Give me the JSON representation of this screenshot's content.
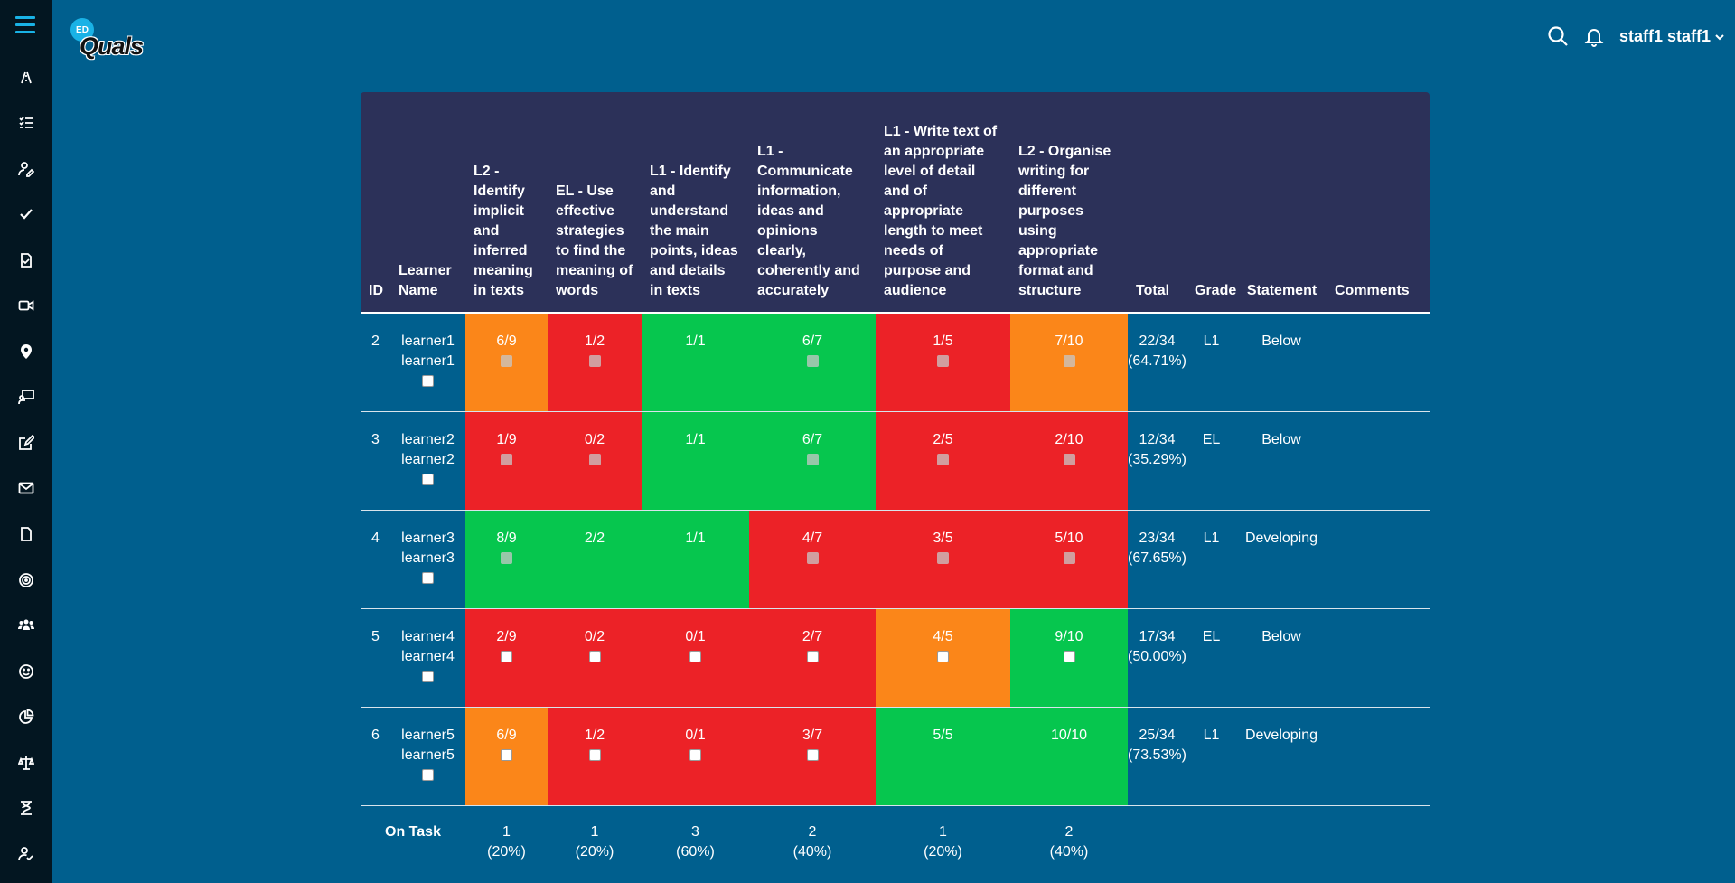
{
  "header": {
    "logo_badge": "ED",
    "logo_text": "Quals",
    "user_name": "staff1 staff1"
  },
  "sidebar_icons": [
    "menu-icon",
    "roadmap-icon",
    "tasklist-icon",
    "user-edit-icon",
    "check-icon",
    "document-check-icon",
    "video-icon",
    "location-icon",
    "classroom-icon",
    "edit-icon",
    "mail-icon",
    "file-icon",
    "target-icon",
    "group-icon",
    "smile-icon",
    "chart-pie-icon",
    "scales-icon",
    "hourglass-icon",
    "user-check-icon"
  ],
  "table": {
    "columns": [
      "ID",
      "Learner Name",
      "L2 - Identify implicit and inferred meaning in texts",
      "EL - Use effective strategies to find the meaning of words",
      "L1 - Identify and understand the main points, ideas and details in texts",
      "L1 - Communicate information, ideas and opinions clearly, coherently and accurately",
      "L1 - Write text of an appropriate level of detail and of appropriate length to meet needs of purpose and audience",
      "L2 - Organise writing for different purposes using appropriate format and structure",
      "Total",
      "Grade",
      "Statement",
      "Comments"
    ],
    "rows": [
      {
        "id": "2",
        "name_first": "learner1",
        "name_last": "learner1",
        "scores": [
          "6/9",
          "1/2",
          "1/1",
          "6/7",
          "1/5",
          "7/10"
        ],
        "total": "22/34",
        "pct": "(64.71%)",
        "grade": "L1",
        "statement": "Below",
        "comment": ""
      },
      {
        "id": "3",
        "name_first": "learner2",
        "name_last": "learner2",
        "scores": [
          "1/9",
          "0/2",
          "1/1",
          "6/7",
          "2/5",
          "2/10"
        ],
        "total": "12/34",
        "pct": "(35.29%)",
        "grade": "EL",
        "statement": "Below",
        "comment": ""
      },
      {
        "id": "4",
        "name_first": "learner3",
        "name_last": "learner3",
        "scores": [
          "8/9",
          "2/2",
          "1/1",
          "4/7",
          "3/5",
          "5/10"
        ],
        "total": "23/34",
        "pct": "(67.65%)",
        "grade": "L1",
        "statement": "Developing",
        "comment": ""
      },
      {
        "id": "5",
        "name_first": "learner4",
        "name_last": "learner4",
        "scores": [
          "2/9",
          "0/2",
          "0/1",
          "2/7",
          "4/5",
          "9/10"
        ],
        "total": "17/34",
        "pct": "(50.00%)",
        "grade": "EL",
        "statement": "Below",
        "comment": ""
      },
      {
        "id": "6",
        "name_first": "learner5",
        "name_last": "learner5",
        "scores": [
          "6/9",
          "1/2",
          "0/1",
          "3/7",
          "5/5",
          "10/10"
        ],
        "total": "25/34",
        "pct": "(73.53%)",
        "grade": "L1",
        "statement": "Developing",
        "comment": ""
      }
    ],
    "on_task": {
      "label": "On Task",
      "counts": [
        "1",
        "1",
        "3",
        "2",
        "1",
        "2"
      ],
      "pcts": [
        "(20%)",
        "(20%)",
        "(60%)",
        "(40%)",
        "(20%)",
        "(40%)"
      ]
    }
  },
  "colors": {
    "green": "#06c64e",
    "red": "#ec2227",
    "orange": "#fb8619",
    "header_bg": "#2c3159",
    "page_bg": "#005f8e",
    "sidebar_bg": "#031621",
    "accent": "#19b2e6"
  }
}
